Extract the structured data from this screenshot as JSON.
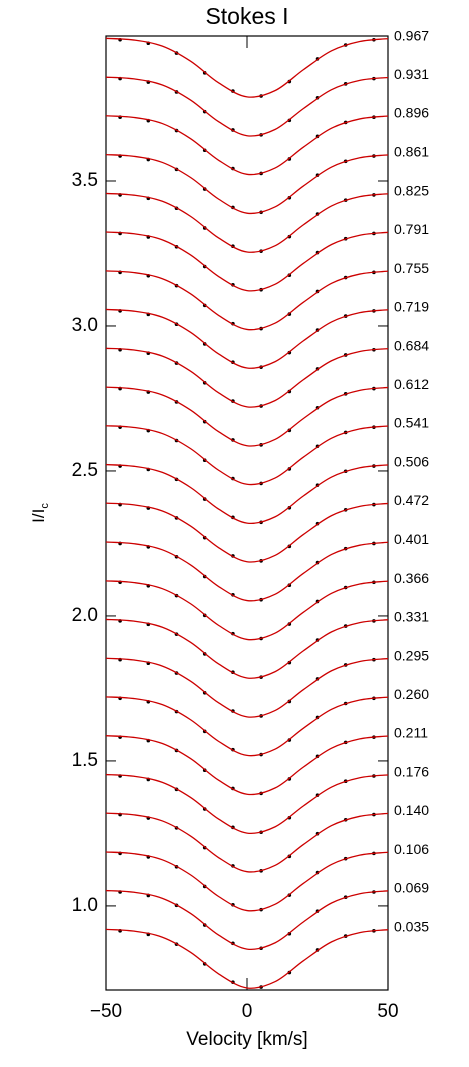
{
  "chart_data": {
    "type": "line",
    "title": "Stokes I",
    "x_label": "Velocity [km/s]",
    "y_label": "I/I",
    "y_label_sub": "c",
    "xlim": [
      -50,
      50
    ],
    "ylim": [
      0.71,
      4.0
    ],
    "xticks": [
      {
        "value": -50,
        "label": "−50"
      },
      0,
      50
    ],
    "yticks": [
      {
        "value": 1,
        "label": "1.0"
      },
      1.5,
      {
        "value": 2,
        "label": "2.0"
      },
      2.5,
      {
        "value": 3,
        "label": "3.0"
      },
      3.5
    ],
    "line_color": "#cc0000",
    "dot_color": "#000000",
    "x": [
      -50,
      -40,
      -30,
      -20,
      -10,
      0,
      10,
      20,
      30,
      40,
      50
    ],
    "observed_x": [
      -45,
      -35,
      -25,
      -15,
      -5,
      5,
      15,
      25,
      35,
      45
    ],
    "series": [
      {
        "name": "0.967",
        "values": [
          3.992,
          3.986,
          3.965,
          3.913,
          3.838,
          3.79,
          3.812,
          3.884,
          3.949,
          3.981,
          3.991
        ],
        "observed": [
          3.987,
          3.975,
          3.941,
          3.873,
          3.81,
          3.793,
          3.843,
          3.921,
          3.969,
          3.987
        ]
      },
      {
        "name": "0.931",
        "values": [
          3.858,
          3.852,
          3.831,
          3.779,
          3.704,
          3.656,
          3.678,
          3.75,
          3.815,
          3.847,
          3.857
        ],
        "observed": [
          3.853,
          3.841,
          3.807,
          3.739,
          3.676,
          3.659,
          3.709,
          3.787,
          3.835,
          3.853
        ]
      },
      {
        "name": "0.896",
        "values": [
          3.725,
          3.719,
          3.698,
          3.646,
          3.571,
          3.523,
          3.545,
          3.617,
          3.682,
          3.714,
          3.724
        ],
        "observed": [
          3.72,
          3.708,
          3.674,
          3.606,
          3.543,
          3.526,
          3.576,
          3.654,
          3.702,
          3.72
        ]
      },
      {
        "name": "0.861",
        "values": [
          3.591,
          3.585,
          3.564,
          3.512,
          3.437,
          3.389,
          3.411,
          3.483,
          3.548,
          3.58,
          3.59
        ],
        "observed": [
          3.586,
          3.574,
          3.54,
          3.472,
          3.409,
          3.392,
          3.442,
          3.52,
          3.568,
          3.586
        ]
      },
      {
        "name": "0.825",
        "values": [
          3.457,
          3.451,
          3.43,
          3.378,
          3.303,
          3.255,
          3.277,
          3.349,
          3.414,
          3.446,
          3.456
        ],
        "observed": [
          3.452,
          3.44,
          3.406,
          3.338,
          3.275,
          3.258,
          3.308,
          3.386,
          3.434,
          3.452
        ]
      },
      {
        "name": "0.791",
        "values": [
          3.324,
          3.318,
          3.297,
          3.245,
          3.17,
          3.122,
          3.144,
          3.216,
          3.281,
          3.313,
          3.323
        ],
        "observed": [
          3.319,
          3.307,
          3.273,
          3.205,
          3.142,
          3.125,
          3.175,
          3.253,
          3.301,
          3.319
        ]
      },
      {
        "name": "0.755",
        "values": [
          3.19,
          3.184,
          3.163,
          3.111,
          3.036,
          2.988,
          3.01,
          3.082,
          3.147,
          3.179,
          3.189
        ],
        "observed": [
          3.185,
          3.173,
          3.139,
          3.071,
          3.008,
          2.991,
          3.041,
          3.119,
          3.167,
          3.185
        ]
      },
      {
        "name": "0.719",
        "values": [
          3.057,
          3.051,
          3.03,
          2.978,
          2.903,
          2.855,
          2.877,
          2.949,
          3.014,
          3.046,
          3.056
        ],
        "observed": [
          3.052,
          3.04,
          3.006,
          2.938,
          2.875,
          2.858,
          2.908,
          2.986,
          3.034,
          3.052
        ]
      },
      {
        "name": "0.684",
        "values": [
          2.923,
          2.917,
          2.896,
          2.844,
          2.769,
          2.721,
          2.743,
          2.815,
          2.88,
          2.912,
          2.922
        ],
        "observed": [
          2.918,
          2.906,
          2.872,
          2.804,
          2.741,
          2.724,
          2.774,
          2.852,
          2.9,
          2.918
        ]
      },
      {
        "name": "0.612",
        "values": [
          2.789,
          2.783,
          2.762,
          2.71,
          2.635,
          2.587,
          2.609,
          2.681,
          2.746,
          2.778,
          2.788
        ],
        "observed": [
          2.784,
          2.772,
          2.738,
          2.67,
          2.607,
          2.59,
          2.64,
          2.718,
          2.766,
          2.784
        ]
      },
      {
        "name": "0.541",
        "values": [
          2.656,
          2.65,
          2.629,
          2.577,
          2.502,
          2.454,
          2.476,
          2.548,
          2.613,
          2.645,
          2.655
        ],
        "observed": [
          2.651,
          2.639,
          2.605,
          2.537,
          2.474,
          2.457,
          2.507,
          2.585,
          2.633,
          2.651
        ]
      },
      {
        "name": "0.506",
        "values": [
          2.522,
          2.516,
          2.495,
          2.443,
          2.368,
          2.32,
          2.342,
          2.414,
          2.479,
          2.511,
          2.521
        ],
        "observed": [
          2.517,
          2.505,
          2.471,
          2.403,
          2.34,
          2.323,
          2.373,
          2.451,
          2.499,
          2.517
        ]
      },
      {
        "name": "0.472",
        "values": [
          2.389,
          2.383,
          2.362,
          2.31,
          2.235,
          2.187,
          2.209,
          2.281,
          2.346,
          2.378,
          2.388
        ],
        "observed": [
          2.384,
          2.372,
          2.338,
          2.27,
          2.207,
          2.19,
          2.24,
          2.318,
          2.366,
          2.384
        ]
      },
      {
        "name": "0.401",
        "values": [
          2.255,
          2.249,
          2.228,
          2.176,
          2.101,
          2.053,
          2.075,
          2.147,
          2.212,
          2.244,
          2.254
        ],
        "observed": [
          2.25,
          2.238,
          2.204,
          2.136,
          2.073,
          2.056,
          2.106,
          2.184,
          2.232,
          2.25
        ]
      },
      {
        "name": "0.366",
        "values": [
          2.121,
          2.115,
          2.094,
          2.042,
          1.967,
          1.919,
          1.941,
          2.013,
          2.078,
          2.11,
          2.12
        ],
        "observed": [
          2.116,
          2.104,
          2.07,
          2.002,
          1.939,
          1.922,
          1.972,
          2.05,
          2.098,
          2.116
        ]
      },
      {
        "name": "0.331",
        "values": [
          1.988,
          1.982,
          1.961,
          1.909,
          1.834,
          1.786,
          1.808,
          1.88,
          1.945,
          1.977,
          1.987
        ],
        "observed": [
          1.983,
          1.971,
          1.937,
          1.869,
          1.806,
          1.789,
          1.839,
          1.917,
          1.965,
          1.983
        ]
      },
      {
        "name": "0.295",
        "values": [
          1.854,
          1.848,
          1.827,
          1.775,
          1.7,
          1.652,
          1.674,
          1.746,
          1.811,
          1.843,
          1.853
        ],
        "observed": [
          1.849,
          1.837,
          1.803,
          1.735,
          1.672,
          1.655,
          1.705,
          1.783,
          1.831,
          1.849
        ]
      },
      {
        "name": "0.260",
        "values": [
          1.721,
          1.715,
          1.694,
          1.642,
          1.567,
          1.519,
          1.541,
          1.613,
          1.678,
          1.71,
          1.72
        ],
        "observed": [
          1.716,
          1.704,
          1.67,
          1.602,
          1.539,
          1.522,
          1.572,
          1.65,
          1.698,
          1.716
        ]
      },
      {
        "name": "0.211",
        "values": [
          1.587,
          1.581,
          1.56,
          1.508,
          1.433,
          1.385,
          1.407,
          1.479,
          1.544,
          1.576,
          1.586
        ],
        "observed": [
          1.582,
          1.57,
          1.536,
          1.468,
          1.405,
          1.388,
          1.438,
          1.516,
          1.564,
          1.582
        ]
      },
      {
        "name": "0.176",
        "values": [
          1.453,
          1.447,
          1.426,
          1.374,
          1.299,
          1.251,
          1.273,
          1.345,
          1.41,
          1.442,
          1.452
        ],
        "observed": [
          1.448,
          1.436,
          1.402,
          1.334,
          1.271,
          1.254,
          1.304,
          1.382,
          1.43,
          1.448
        ]
      },
      {
        "name": "0.140",
        "values": [
          1.32,
          1.314,
          1.293,
          1.241,
          1.166,
          1.118,
          1.14,
          1.212,
          1.277,
          1.309,
          1.319
        ],
        "observed": [
          1.315,
          1.303,
          1.269,
          1.201,
          1.138,
          1.121,
          1.171,
          1.249,
          1.297,
          1.315
        ]
      },
      {
        "name": "0.106",
        "values": [
          1.186,
          1.18,
          1.159,
          1.107,
          1.032,
          0.984,
          1.006,
          1.078,
          1.143,
          1.175,
          1.185
        ],
        "observed": [
          1.181,
          1.169,
          1.135,
          1.067,
          1.004,
          0.987,
          1.037,
          1.115,
          1.163,
          1.181
        ]
      },
      {
        "name": "0.069",
        "values": [
          1.053,
          1.047,
          1.026,
          0.974,
          0.899,
          0.851,
          0.873,
          0.945,
          1.01,
          1.042,
          1.052
        ],
        "observed": [
          1.048,
          1.036,
          1.002,
          0.934,
          0.871,
          0.854,
          0.904,
          0.982,
          1.03,
          1.048
        ]
      },
      {
        "name": "0.035",
        "values": [
          0.919,
          0.913,
          0.892,
          0.84,
          0.765,
          0.717,
          0.739,
          0.811,
          0.876,
          0.908,
          0.918
        ],
        "observed": [
          0.914,
          0.902,
          0.868,
          0.8,
          0.737,
          0.72,
          0.77,
          0.848,
          0.896,
          0.914
        ]
      }
    ]
  }
}
